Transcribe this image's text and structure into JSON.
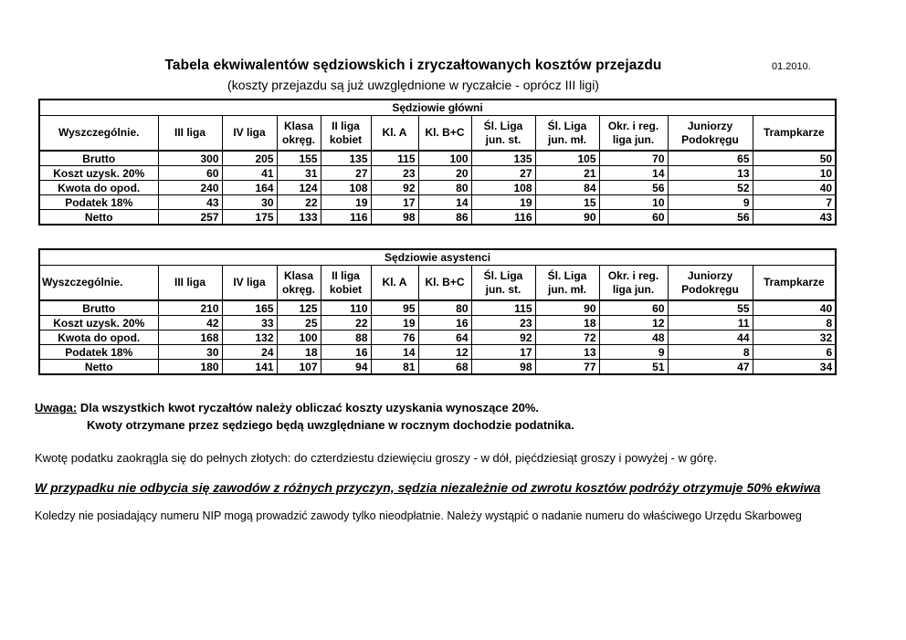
{
  "header": {
    "title": "Tabela ekwiwalentów sędziowskich i zryczałtowanych kosztów przejazdu",
    "date": "01.2010.",
    "subtitle": "(koszty przejazdu są już uwzględnione w ryczałcie - oprócz III ligi)"
  },
  "columns": [
    "Wyszczególnie.",
    "III liga",
    "IV liga",
    "Klasa okręg.",
    "II liga kobiet",
    "Kl. A",
    "Kl. B+C",
    "Śl. Liga jun. st.",
    "Śl. Liga jun. mł.",
    "Okr. i reg. liga jun.",
    "Juniorzy Podokręgu",
    "Trampkarze"
  ],
  "chart_data": {
    "type": "table",
    "note": "two data tables of referee payment equivalents"
  },
  "tables": [
    {
      "title": "Sędziowie główni",
      "rows": [
        {
          "label": "Brutto",
          "values": [
            300,
            205,
            155,
            135,
            115,
            100,
            135,
            105,
            70,
            65,
            50
          ]
        },
        {
          "label": "Koszt uzysk. 20%",
          "values": [
            60,
            41,
            31,
            27,
            23,
            20,
            27,
            21,
            14,
            13,
            10
          ]
        },
        {
          "label": "Kwota do opod.",
          "values": [
            240,
            164,
            124,
            108,
            92,
            80,
            108,
            84,
            56,
            52,
            40
          ]
        },
        {
          "label": "Podatek 18%",
          "values": [
            43,
            30,
            22,
            19,
            17,
            14,
            19,
            15,
            10,
            9,
            7
          ]
        },
        {
          "label": "Netto",
          "values": [
            257,
            175,
            133,
            116,
            98,
            86,
            116,
            90,
            60,
            56,
            43
          ]
        }
      ]
    },
    {
      "title": "Sędziowie asystenci",
      "rows": [
        {
          "label": "Brutto",
          "values": [
            210,
            165,
            125,
            110,
            95,
            80,
            115,
            90,
            60,
            55,
            40
          ]
        },
        {
          "label": "Koszt uzysk. 20%",
          "values": [
            42,
            33,
            25,
            22,
            19,
            16,
            23,
            18,
            12,
            11,
            8
          ]
        },
        {
          "label": "Kwota do opod.",
          "values": [
            168,
            132,
            100,
            88,
            76,
            64,
            92,
            72,
            48,
            44,
            32
          ]
        },
        {
          "label": "Podatek 18%",
          "values": [
            30,
            24,
            18,
            16,
            14,
            12,
            17,
            13,
            9,
            8,
            6
          ]
        },
        {
          "label": "Netto",
          "values": [
            180,
            141,
            107,
            94,
            81,
            68,
            98,
            77,
            51,
            47,
            34
          ]
        }
      ]
    }
  ],
  "notes": {
    "uwaga_label": "Uwaga:",
    "uwaga_line1": "Dla wszystkich kwot ryczałtów należy obliczać koszty uzyskania wynoszące 20%.",
    "uwaga_line2": "Kwoty otrzymane przez sędziego będą uwzględniane w rocznym dochodzie podatnika.",
    "rounding": "Kwotę podatku zaokrągla się do pełnych złotych: do czterdziestu dziewięciu groszy - w dół, pięćdziesiąt groszy i powyżej - w górę.",
    "cancellation": "W przypadku nie odbycia się zawodów z różnych przyczyn, sędzia niezależnie od zwrotu kosztów podróży otrzymuje 50% ekwiwa",
    "nip": "Koledzy nie posiadający numeru NIP mogą prowadzić zawody tylko nieodpłatnie. Należy wystąpić o nadanie numeru do właściwego Urzędu Skarboweg"
  }
}
